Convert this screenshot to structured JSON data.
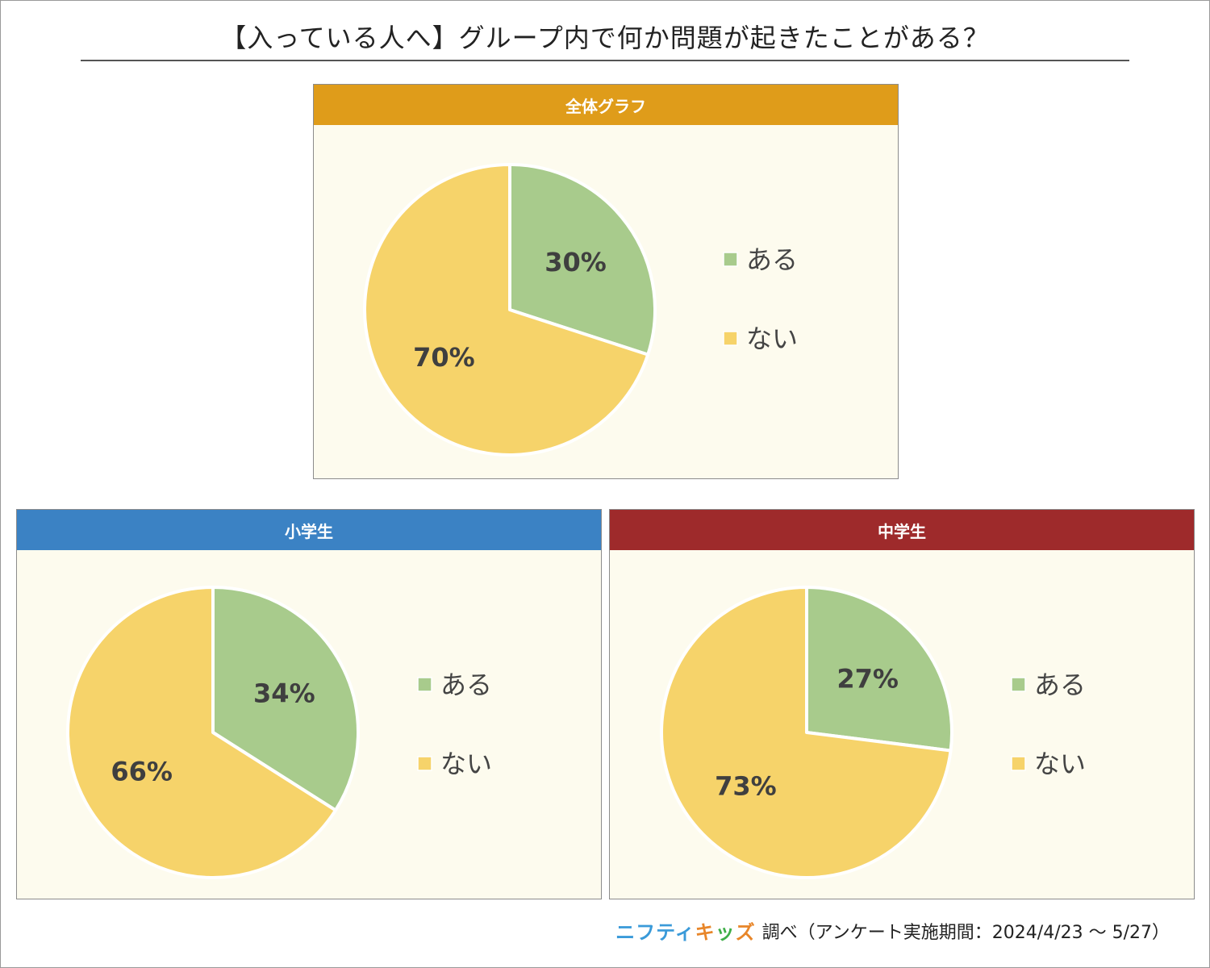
{
  "title": "【入っている人へ】グループ内で何か問題が起きたことがある？",
  "footer": {
    "brand_part1": "ニフティ",
    "brand_part2": "キ",
    "brand_part3": "ッ",
    "brand_part4": "ズ",
    "text": "調べ（アンケート実施期間：2024/4/23 ～ 5/27）"
  },
  "colors": {
    "aru": "#a8cb8c",
    "nai": "#f6d36a",
    "panel_bg": "#fdfbee",
    "header_all": "#df9c1a",
    "header_elementary": "#3b82c4",
    "header_junior": "#9e2a2b",
    "label_text": "#3f3f3f"
  },
  "chart_data": [
    {
      "type": "pie",
      "title": "全体グラフ",
      "header_color": "#df9c1a",
      "slices": [
        {
          "label": "ある",
          "value": 30,
          "display": "30%",
          "color": "#a8cb8c"
        },
        {
          "label": "ない",
          "value": 70,
          "display": "70%",
          "color": "#f6d36a"
        }
      ],
      "legend": [
        "ある",
        "ない"
      ],
      "legend_position": "right"
    },
    {
      "type": "pie",
      "title": "小学生",
      "header_color": "#3b82c4",
      "slices": [
        {
          "label": "ある",
          "value": 34,
          "display": "34%",
          "color": "#a8cb8c"
        },
        {
          "label": "ない",
          "value": 66,
          "display": "66%",
          "color": "#f6d36a"
        }
      ],
      "legend": [
        "ある",
        "ない"
      ],
      "legend_position": "right"
    },
    {
      "type": "pie",
      "title": "中学生",
      "header_color": "#9e2a2b",
      "slices": [
        {
          "label": "ある",
          "value": 27,
          "display": "27%",
          "color": "#a8cb8c"
        },
        {
          "label": "ない",
          "value": 73,
          "display": "73%",
          "color": "#f6d36a"
        }
      ],
      "legend": [
        "ある",
        "ない"
      ],
      "legend_position": "right"
    }
  ]
}
